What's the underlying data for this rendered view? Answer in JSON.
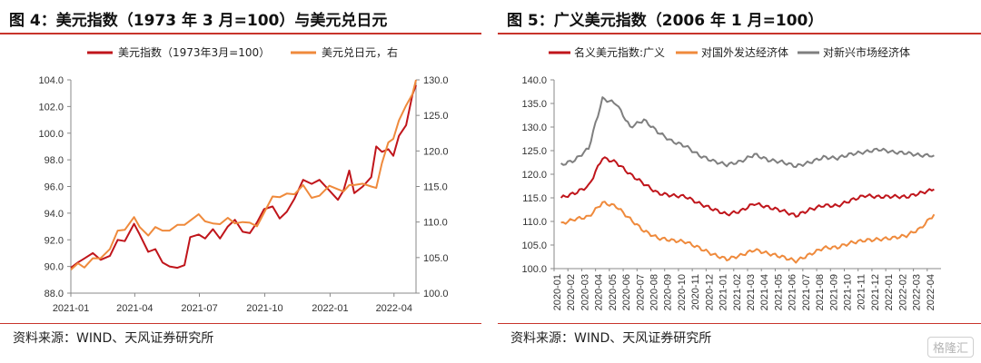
{
  "left": {
    "title": "图 4：美元指数（1973 年 3 月=100）与美元兑日元",
    "source": "资料来源：WIND、天风证券研究所"
  },
  "right": {
    "title": "图 5：广义美元指数（2006 年 1 月=100）",
    "source": "资料来源：WIND、天风证券研究所"
  },
  "watermark": "格隆汇",
  "colors": {
    "red": "#c0151b",
    "orange": "#ef8a3c",
    "gray": "#7f7f7f",
    "accent": "#c8342b"
  },
  "chart_data": [
    {
      "type": "line",
      "x_ticks": [
        "2021-01",
        "2021-04",
        "2021-07",
        "2021-10",
        "2022-01",
        "2022-04"
      ],
      "y_left": {
        "min": 88,
        "max": 104,
        "step": 2,
        "tick_labels": [
          "88.0",
          "90.0",
          "92.0",
          "94.0",
          "96.0",
          "98.0",
          "100.0",
          "102.0",
          "104.0"
        ]
      },
      "y_right": {
        "min": 100,
        "max": 130,
        "step": 5,
        "tick_labels": [
          "100.0",
          "105.0",
          "110.0",
          "115.0",
          "120.0",
          "125.0",
          "130.0"
        ]
      },
      "grid": false,
      "legend_position": "top",
      "series": [
        {
          "name": "美元指数（1973年3月=100）",
          "axis": "left",
          "color": "#c0151b",
          "points": [
            [
              "2021-01-01",
              89.9
            ],
            [
              "2021-01-11",
              90.3
            ],
            [
              "2021-01-20",
              90.6
            ],
            [
              "2021-02-01",
              91.0
            ],
            [
              "2021-02-12",
              90.5
            ],
            [
              "2021-02-25",
              90.8
            ],
            [
              "2021-03-08",
              92.0
            ],
            [
              "2021-03-18",
              91.9
            ],
            [
              "2021-03-31",
              93.2
            ],
            [
              "2021-04-08",
              92.4
            ],
            [
              "2021-04-20",
              91.1
            ],
            [
              "2021-04-30",
              91.3
            ],
            [
              "2021-05-10",
              90.3
            ],
            [
              "2021-05-20",
              90.0
            ],
            [
              "2021-05-31",
              89.9
            ],
            [
              "2021-06-10",
              90.1
            ],
            [
              "2021-06-18",
              92.2
            ],
            [
              "2021-06-30",
              92.4
            ],
            [
              "2021-07-09",
              92.1
            ],
            [
              "2021-07-20",
              92.8
            ],
            [
              "2021-07-30",
              92.1
            ],
            [
              "2021-08-10",
              93.0
            ],
            [
              "2021-08-20",
              93.5
            ],
            [
              "2021-08-31",
              92.6
            ],
            [
              "2021-09-10",
              92.5
            ],
            [
              "2021-09-20",
              93.3
            ],
            [
              "2021-09-30",
              94.3
            ],
            [
              "2021-10-12",
              94.5
            ],
            [
              "2021-10-22",
              93.6
            ],
            [
              "2021-11-01",
              94.1
            ],
            [
              "2021-11-12",
              95.1
            ],
            [
              "2021-11-24",
              96.5
            ],
            [
              "2021-12-06",
              96.2
            ],
            [
              "2021-12-17",
              96.5
            ],
            [
              "2021-12-31",
              95.7
            ],
            [
              "2022-01-12",
              95.0
            ],
            [
              "2022-01-20",
              95.7
            ],
            [
              "2022-01-28",
              97.2
            ],
            [
              "2022-02-04",
              95.5
            ],
            [
              "2022-02-16",
              96.0
            ],
            [
              "2022-02-28",
              96.7
            ],
            [
              "2022-03-07",
              99.0
            ],
            [
              "2022-03-15",
              98.6
            ],
            [
              "2022-03-24",
              98.8
            ],
            [
              "2022-03-31",
              98.3
            ],
            [
              "2022-04-08",
              99.8
            ],
            [
              "2022-04-18",
              100.6
            ],
            [
              "2022-04-27",
              102.9
            ],
            [
              "2022-05-02",
              103.6
            ]
          ]
        },
        {
          "name": "美元兑日元，右",
          "axis": "right",
          "color": "#ef8a3c",
          "points": [
            [
              "2021-01-01",
              103.3
            ],
            [
              "2021-01-11",
              104.2
            ],
            [
              "2021-01-20",
              103.6
            ],
            [
              "2021-02-01",
              104.9
            ],
            [
              "2021-02-12",
              104.9
            ],
            [
              "2021-02-25",
              106.2
            ],
            [
              "2021-03-08",
              108.8
            ],
            [
              "2021-03-18",
              108.9
            ],
            [
              "2021-03-31",
              110.7
            ],
            [
              "2021-04-08",
              109.3
            ],
            [
              "2021-04-20",
              108.1
            ],
            [
              "2021-04-30",
              109.3
            ],
            [
              "2021-05-10",
              108.8
            ],
            [
              "2021-05-20",
              108.8
            ],
            [
              "2021-05-31",
              109.6
            ],
            [
              "2021-06-10",
              109.6
            ],
            [
              "2021-06-18",
              110.2
            ],
            [
              "2021-06-30",
              111.1
            ],
            [
              "2021-07-09",
              110.1
            ],
            [
              "2021-07-20",
              109.8
            ],
            [
              "2021-07-30",
              109.7
            ],
            [
              "2021-08-10",
              110.6
            ],
            [
              "2021-08-20",
              109.8
            ],
            [
              "2021-08-31",
              110.0
            ],
            [
              "2021-09-10",
              109.9
            ],
            [
              "2021-09-20",
              109.4
            ],
            [
              "2021-09-30",
              111.3
            ],
            [
              "2021-10-12",
              113.6
            ],
            [
              "2021-10-22",
              113.5
            ],
            [
              "2021-11-01",
              114.0
            ],
            [
              "2021-11-12",
              113.9
            ],
            [
              "2021-11-24",
              115.2
            ],
            [
              "2021-12-06",
              113.4
            ],
            [
              "2021-12-17",
              113.7
            ],
            [
              "2021-12-31",
              115.1
            ],
            [
              "2022-01-12",
              114.6
            ],
            [
              "2022-01-20",
              114.3
            ],
            [
              "2022-01-28",
              115.2
            ],
            [
              "2022-02-04",
              115.2
            ],
            [
              "2022-02-16",
              115.4
            ],
            [
              "2022-02-28",
              115.0
            ],
            [
              "2022-03-07",
              114.8
            ],
            [
              "2022-03-15",
              118.3
            ],
            [
              "2022-03-24",
              121.2
            ],
            [
              "2022-03-31",
              121.7
            ],
            [
              "2022-04-08",
              124.3
            ],
            [
              "2022-04-18",
              126.4
            ],
            [
              "2022-04-27",
              128.0
            ],
            [
              "2022-05-02",
              130.0
            ]
          ]
        }
      ]
    },
    {
      "type": "line",
      "x_ticks": [
        "2020-01",
        "2020-02",
        "2020-03",
        "2020-04",
        "2020-05",
        "2020-06",
        "2020-07",
        "2020-08",
        "2020-09",
        "2020-10",
        "2020-11",
        "2020-12",
        "2021-01",
        "2021-02",
        "2021-03",
        "2021-04",
        "2021-05",
        "2021-06",
        "2021-07",
        "2021-08",
        "2021-09",
        "2021-10",
        "2021-11",
        "2021-12",
        "2022-01",
        "2022-02",
        "2022-03",
        "2022-04"
      ],
      "y": {
        "min": 100,
        "max": 140,
        "step": 5,
        "tick_labels": [
          "100.0",
          "105.0",
          "110.0",
          "115.0",
          "120.0",
          "125.0",
          "130.0",
          "135.0",
          "140.0"
        ]
      },
      "grid": false,
      "legend_position": "top",
      "series": [
        {
          "name": "名义美元指数:广义",
          "color": "#c0151b",
          "values": [
            115.0,
            116.0,
            117.5,
            123.5,
            122.5,
            120.0,
            118.0,
            116.0,
            115.5,
            115.3,
            113.8,
            112.6,
            111.5,
            112.2,
            113.8,
            113.0,
            112.3,
            111.2,
            112.5,
            113.4,
            113.3,
            114.5,
            115.5,
            115.2,
            115.3,
            115.2,
            116.0,
            116.8
          ]
        },
        {
          "name": "对国外发达经济体",
          "color": "#ef8a3c",
          "values": [
            109.5,
            110.5,
            111.0,
            114.0,
            113.2,
            110.5,
            108.0,
            106.5,
            106.0,
            105.7,
            104.4,
            103.0,
            102.0,
            102.8,
            104.0,
            103.2,
            102.5,
            101.6,
            103.0,
            104.4,
            104.5,
            105.5,
            106.0,
            106.2,
            106.5,
            107.0,
            108.5,
            111.5
          ]
        },
        {
          "name": "对新兴市场经济体",
          "color": "#7f7f7f",
          "values": [
            122.0,
            123.0,
            125.5,
            136.0,
            135.0,
            130.0,
            131.5,
            129.0,
            127.0,
            126.0,
            124.0,
            122.8,
            122.0,
            122.7,
            124.2,
            123.0,
            122.6,
            121.7,
            122.5,
            123.6,
            123.4,
            124.3,
            124.7,
            125.3,
            124.7,
            124.5,
            124.0,
            124.0
          ]
        }
      ]
    }
  ]
}
